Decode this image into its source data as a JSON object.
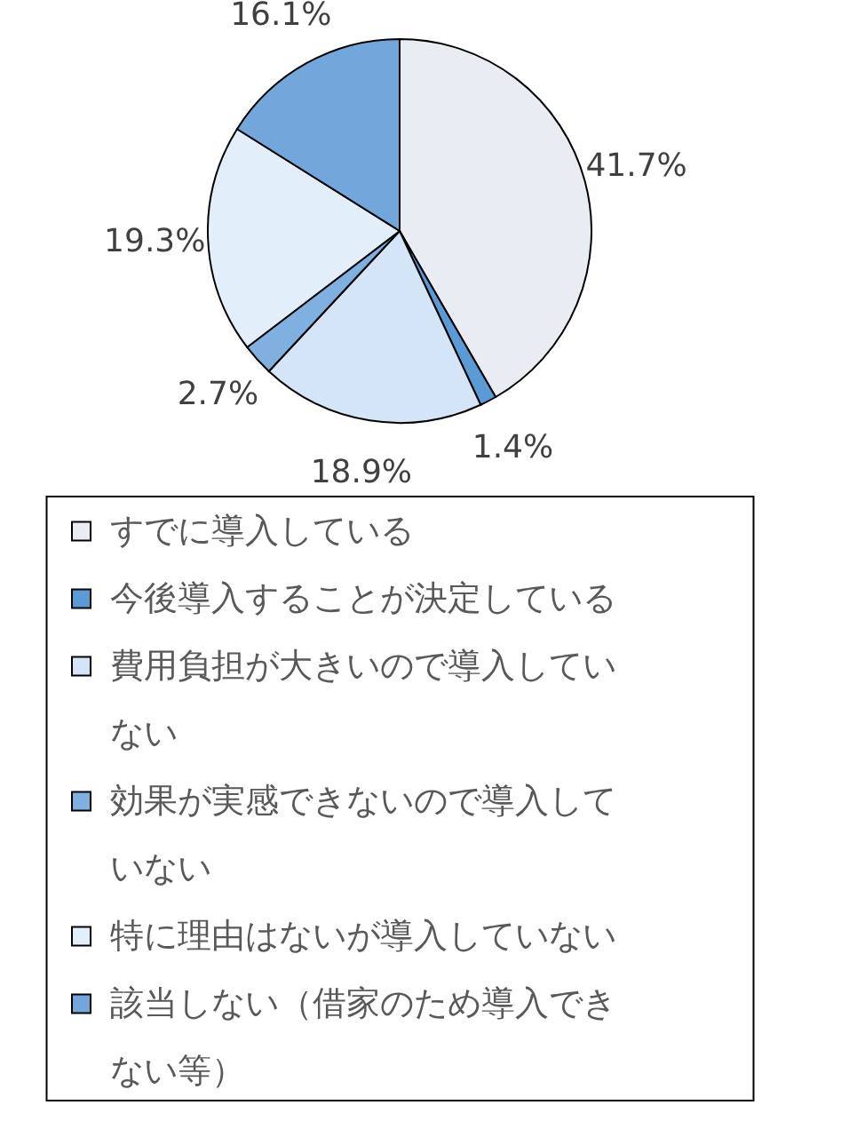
{
  "chart_data": {
    "type": "pie",
    "categories": [
      "すでに導入している",
      "今後導入することが決定している",
      "費用負担が大きいので導入していない",
      "効果が実感できないので導入していない",
      "特に理由はないが導入していない",
      "該当しない（借家のため導入できない等）"
    ],
    "values": [
      41.7,
      1.4,
      18.9,
      2.7,
      19.3,
      16.1
    ],
    "value_labels": [
      "41.7%",
      "1.4%",
      "18.9%",
      "2.7%",
      "19.3%",
      "16.1%"
    ],
    "colors": [
      "#e9edf3",
      "#5b9bd5",
      "#d3e5f6",
      "#7fb0e0",
      "#e2eef9",
      "#73a7dc"
    ],
    "legend": "bottom"
  }
}
